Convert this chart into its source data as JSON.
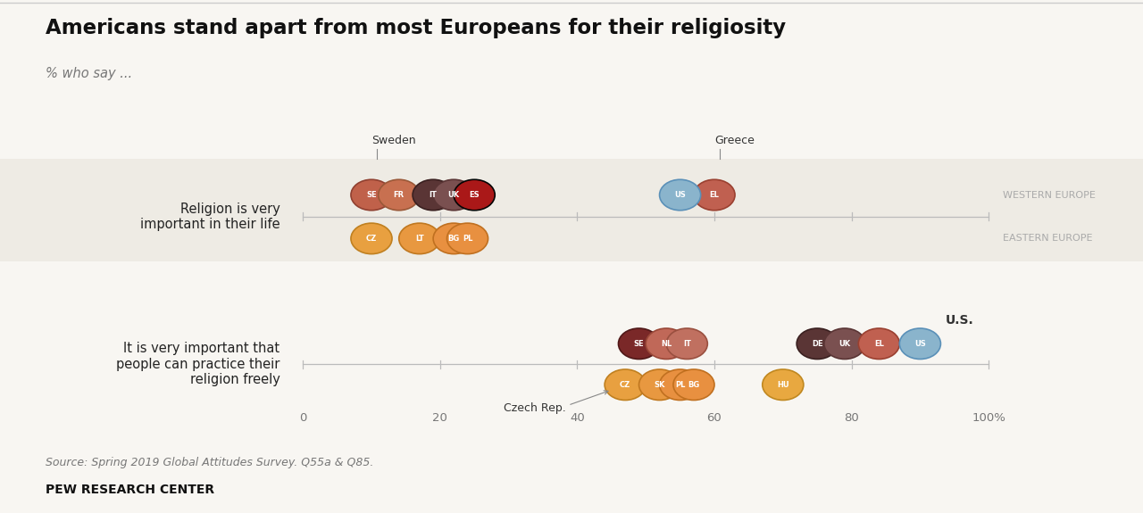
{
  "title": "Americans stand apart from most Europeans for their religiosity",
  "subtitle": "% who say ...",
  "source": "Source: Spring 2019 Global Attitudes Survey. Q55a & Q85.",
  "publisher": "PEW RESEARCH CENTER",
  "chart1_label": "Religion is very\nimportant in their life",
  "chart2_label": "It is very important that\npeople can practice their\nreligion freely",
  "western_europe_label": "WESTERN EUROPE",
  "eastern_europe_label": "EASTERN EUROPE",
  "us_label_chart2": "U.S.",
  "sweden_label": "Sweden",
  "greece_label": "Greece",
  "czech_label": "Czech Rep.",
  "xlim": [
    0,
    100
  ],
  "xticks": [
    0,
    20,
    40,
    60,
    80,
    100
  ],
  "xticklabels": [
    "0",
    "20",
    "40",
    "60",
    "80",
    "100%"
  ],
  "bg_color": "#f8f6f2",
  "chart1_bg": "#eeebe4",
  "chart1": {
    "western": [
      {
        "code": "SE",
        "x": 10,
        "color": "#c0614a",
        "edge": "#904030"
      },
      {
        "code": "FR",
        "x": 14,
        "color": "#c87050",
        "edge": "#9a5838"
      },
      {
        "code": "IT",
        "x": 19,
        "color": "#5a3535",
        "edge": "#3a2020"
      },
      {
        "code": "UK",
        "x": 22,
        "color": "#7a5050",
        "edge": "#5a3535"
      },
      {
        "code": "ES",
        "x": 25,
        "color": "#aa1818",
        "edge": "#050505"
      },
      {
        "code": "EL",
        "x": 60,
        "color": "#c06050",
        "edge": "#9a4030"
      },
      {
        "code": "US",
        "x": 55,
        "color": "#8ab4cc",
        "edge": "#5a90b8"
      }
    ],
    "eastern": [
      {
        "code": "CZ",
        "x": 10,
        "color": "#e8a040",
        "edge": "#c08020"
      },
      {
        "code": "LT",
        "x": 17,
        "color": "#e89840",
        "edge": "#c07820"
      },
      {
        "code": "BG",
        "x": 22,
        "color": "#e89040",
        "edge": "#c07020"
      },
      {
        "code": "PL",
        "x": 24,
        "color": "#e89040",
        "edge": "#c07020"
      }
    ]
  },
  "chart2": {
    "western": [
      {
        "code": "SE",
        "x": 49,
        "color": "#7a2828",
        "edge": "#501818"
      },
      {
        "code": "NL",
        "x": 53,
        "color": "#c06858",
        "edge": "#9a4838"
      },
      {
        "code": "IT",
        "x": 56,
        "color": "#c07060",
        "edge": "#9a5040"
      },
      {
        "code": "DE",
        "x": 75,
        "color": "#5a3535",
        "edge": "#3a2020"
      },
      {
        "code": "UK",
        "x": 79,
        "color": "#7a5050",
        "edge": "#5a3535"
      },
      {
        "code": "EL",
        "x": 84,
        "color": "#c06050",
        "edge": "#9a4030"
      },
      {
        "code": "US",
        "x": 90,
        "color": "#8ab4cc",
        "edge": "#5a90b8"
      }
    ],
    "eastern": [
      {
        "code": "CZ",
        "x": 47,
        "color": "#e8a040",
        "edge": "#c08020"
      },
      {
        "code": "SK",
        "x": 52,
        "color": "#e89840",
        "edge": "#c07820"
      },
      {
        "code": "PL",
        "x": 55,
        "color": "#e89040",
        "edge": "#c07020"
      },
      {
        "code": "BG",
        "x": 57,
        "color": "#e89040",
        "edge": "#c07020"
      },
      {
        "code": "HU",
        "x": 70,
        "color": "#e8a840",
        "edge": "#c08820"
      }
    ]
  }
}
